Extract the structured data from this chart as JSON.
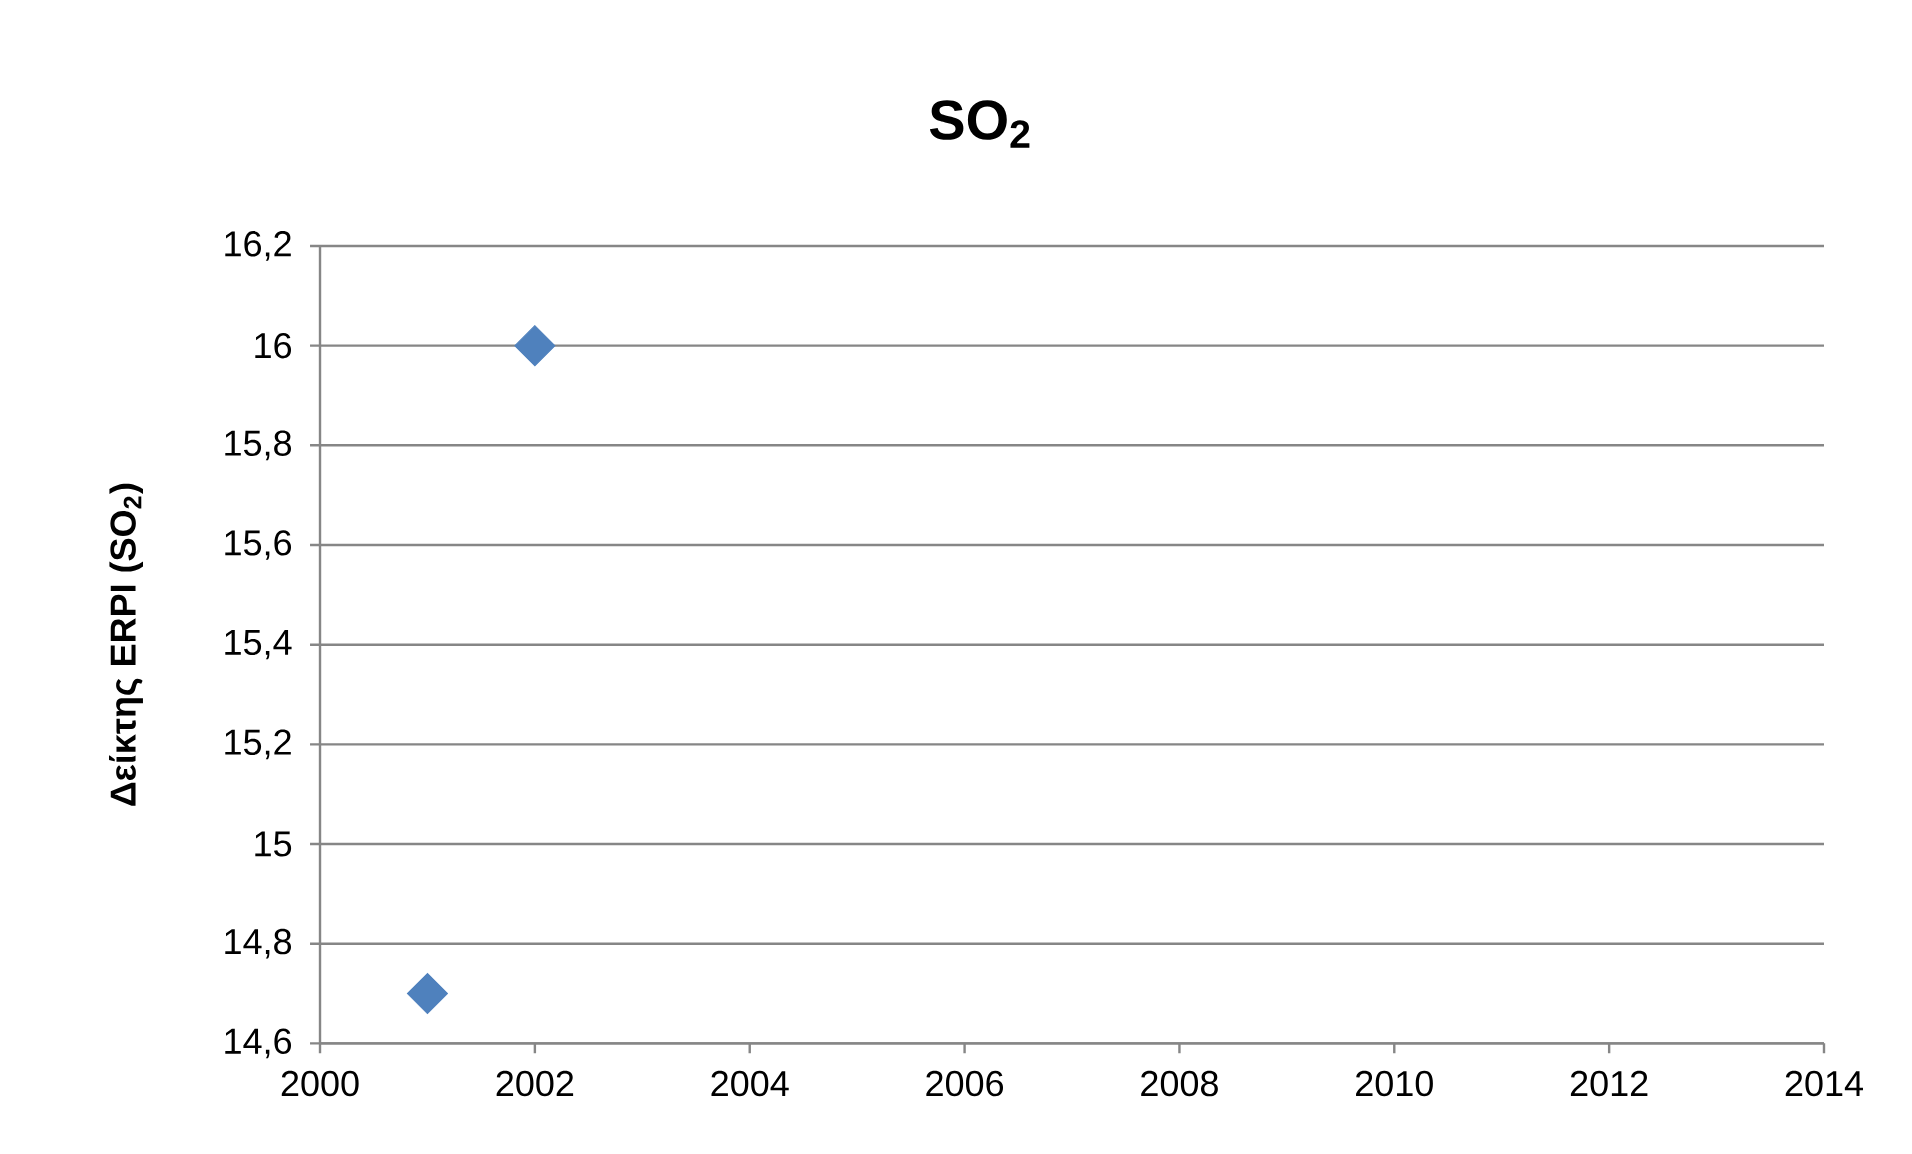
{
  "chart_data": {
    "type": "scatter",
    "title": "SO$_{2}$",
    "ylabel": "Δείκτης ERPI (SO$_{2}$)",
    "x": [
      2001,
      2002
    ],
    "values": [
      14.7,
      16
    ],
    "color": "#4f81bd",
    "marker": "diamond",
    "grid": "y",
    "xlim": [
      2000,
      2014
    ],
    "xticks": [
      2000,
      2002,
      2004,
      2006,
      2008,
      2010,
      2012,
      2014
    ],
    "ylim": [
      14.6,
      16.2
    ],
    "yticks": [
      {
        "value": 14.6,
        "label": "14,6"
      },
      {
        "value": 14.8,
        "label": "14,8"
      },
      15,
      {
        "value": 15.2,
        "label": "15,2"
      },
      {
        "value": 15.4,
        "label": "15,4"
      },
      {
        "value": 15.6,
        "label": "15,6"
      },
      {
        "value": 15.8,
        "label": "15,8"
      },
      16,
      {
        "value": 16.2,
        "label": "16,2"
      }
    ]
  }
}
